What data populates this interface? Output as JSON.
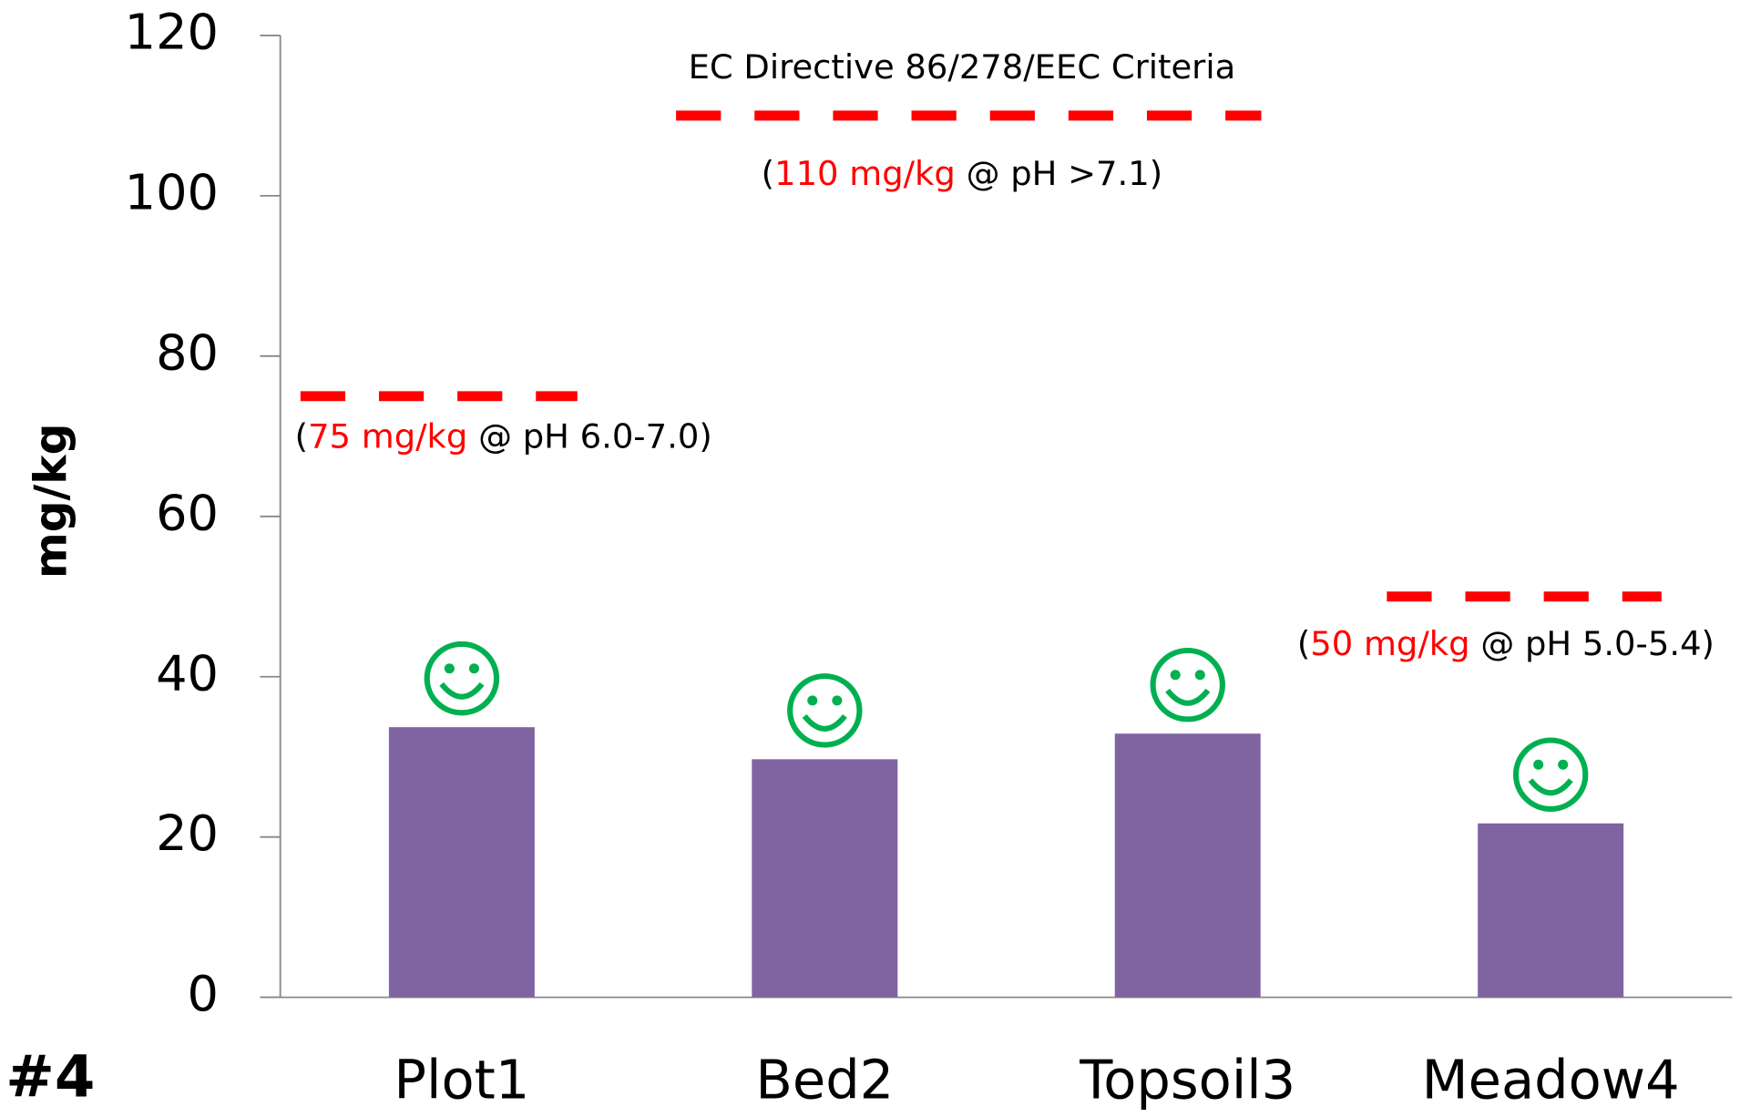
{
  "chart_data": {
    "type": "bar",
    "panel_label": "#4",
    "y_label": "mg/kg",
    "categories": [
      "Plot1",
      "Bed2",
      "Topsoil3",
      "Meadow4"
    ],
    "values": [
      33.7,
      29.7,
      32.9,
      21.7
    ],
    "color": "#8064a2",
    "ylim": [
      0,
      120
    ],
    "yticks": [
      0,
      20,
      40,
      60,
      80,
      100,
      120
    ],
    "grid": false,
    "criteria_title": "EC Directive 86/278/EEC Criteria",
    "criteria_color": "#ff0000",
    "criteria": [
      {
        "value": 75,
        "label_parts": [
          "(",
          "75 mg/kg",
          " @ pH 6.0-7.0)"
        ]
      },
      {
        "value": 110,
        "label_parts": [
          "(",
          "110 mg/kg",
          " @ pH >7.1)"
        ]
      },
      {
        "value": 50,
        "label_parts": [
          "(",
          "50 mg/kg",
          " @ pH 5.0-5.4)"
        ]
      }
    ]
  }
}
